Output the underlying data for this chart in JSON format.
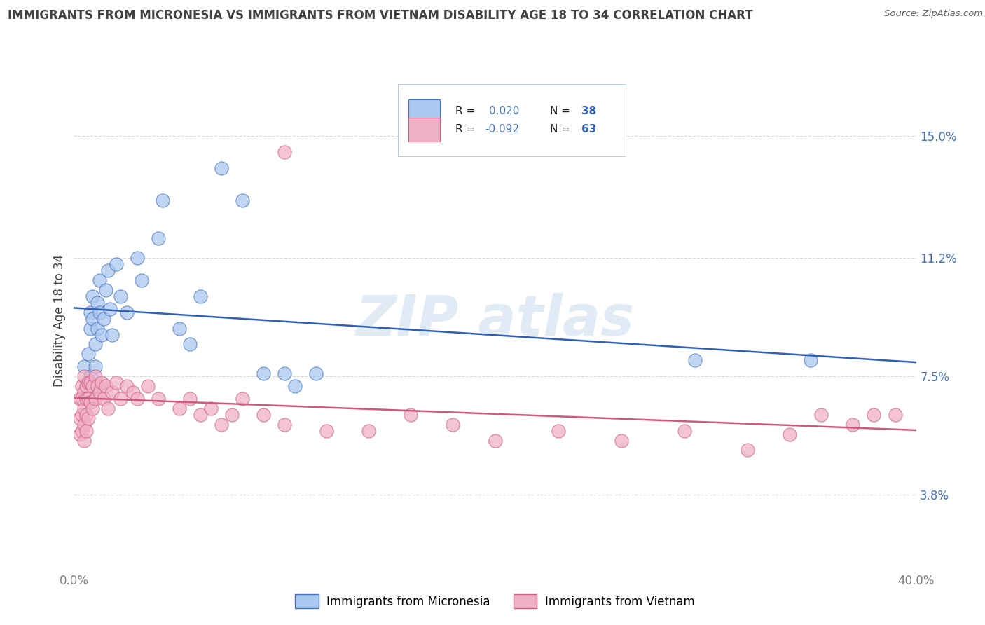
{
  "title": "IMMIGRANTS FROM MICRONESIA VS IMMIGRANTS FROM VIETNAM DISABILITY AGE 18 TO 34 CORRELATION CHART",
  "source": "Source: ZipAtlas.com",
  "ylabel": "Disability Age 18 to 34",
  "ytick_vals": [
    0.038,
    0.075,
    0.112,
    0.15
  ],
  "ytick_labels": [
    "3.8%",
    "7.5%",
    "11.2%",
    "15.0%"
  ],
  "xlim": [
    0.0,
    0.4
  ],
  "ylim": [
    0.015,
    0.17
  ],
  "xtick_vals": [
    0.0,
    0.4
  ],
  "xtick_labels": [
    "0.0%",
    "40.0%"
  ],
  "legend1_r": "R =  0.020",
  "legend1_n": "N = 38",
  "legend2_r": "R = -0.092",
  "legend2_n": "N = 63",
  "color_mic_fill": "#aac8f0",
  "color_mic_edge": "#4472c4",
  "color_vie_fill": "#f0b0c8",
  "color_vie_edge": "#d06080",
  "color_line_mic": "#3060b8",
  "color_line_vie": "#d05878",
  "color_ytick": "#4472c4",
  "color_xtick": "#808080",
  "color_title": "#404040",
  "color_source": "#606060",
  "color_rval": "#4472c4",
  "color_nval": "#3060c0",
  "grid_color": "#d8d8d8",
  "watermark_color": "#c8dcf0",
  "mic_x": [
    0.005,
    0.007,
    0.008,
    0.008,
    0.008,
    0.009,
    0.009,
    0.01,
    0.01,
    0.01,
    0.011,
    0.011,
    0.012,
    0.012,
    0.013,
    0.014,
    0.015,
    0.016,
    0.017,
    0.018,
    0.02,
    0.022,
    0.025,
    0.03,
    0.032,
    0.04,
    0.042,
    0.05,
    0.055,
    0.06,
    0.07,
    0.08,
    0.09,
    0.1,
    0.105,
    0.115,
    0.295,
    0.35
  ],
  "mic_y": [
    0.078,
    0.082,
    0.09,
    0.095,
    0.075,
    0.1,
    0.093,
    0.085,
    0.078,
    0.072,
    0.098,
    0.09,
    0.105,
    0.095,
    0.088,
    0.093,
    0.102,
    0.108,
    0.096,
    0.088,
    0.11,
    0.1,
    0.095,
    0.112,
    0.105,
    0.118,
    0.13,
    0.09,
    0.085,
    0.1,
    0.14,
    0.13,
    0.076,
    0.076,
    0.072,
    0.076,
    0.08,
    0.08
  ],
  "vie_x": [
    0.003,
    0.003,
    0.003,
    0.004,
    0.004,
    0.004,
    0.004,
    0.005,
    0.005,
    0.005,
    0.005,
    0.005,
    0.006,
    0.006,
    0.006,
    0.006,
    0.007,
    0.007,
    0.007,
    0.008,
    0.008,
    0.009,
    0.009,
    0.01,
    0.01,
    0.011,
    0.012,
    0.013,
    0.014,
    0.015,
    0.016,
    0.018,
    0.02,
    0.022,
    0.025,
    0.028,
    0.03,
    0.035,
    0.04,
    0.05,
    0.055,
    0.06,
    0.065,
    0.07,
    0.075,
    0.08,
    0.09,
    0.1,
    0.12,
    0.14,
    0.16,
    0.18,
    0.2,
    0.23,
    0.26,
    0.29,
    0.32,
    0.34,
    0.355,
    0.37,
    0.38,
    0.39,
    0.1
  ],
  "vie_y": [
    0.068,
    0.062,
    0.057,
    0.072,
    0.068,
    0.063,
    0.058,
    0.075,
    0.07,
    0.065,
    0.06,
    0.055,
    0.072,
    0.068,
    0.063,
    0.058,
    0.073,
    0.068,
    0.062,
    0.073,
    0.067,
    0.072,
    0.065,
    0.075,
    0.068,
    0.072,
    0.07,
    0.073,
    0.068,
    0.072,
    0.065,
    0.07,
    0.073,
    0.068,
    0.072,
    0.07,
    0.068,
    0.072,
    0.068,
    0.065,
    0.068,
    0.063,
    0.065,
    0.06,
    0.063,
    0.068,
    0.063,
    0.06,
    0.058,
    0.058,
    0.063,
    0.06,
    0.055,
    0.058,
    0.055,
    0.058,
    0.052,
    0.057,
    0.063,
    0.06,
    0.063,
    0.063,
    0.145
  ]
}
